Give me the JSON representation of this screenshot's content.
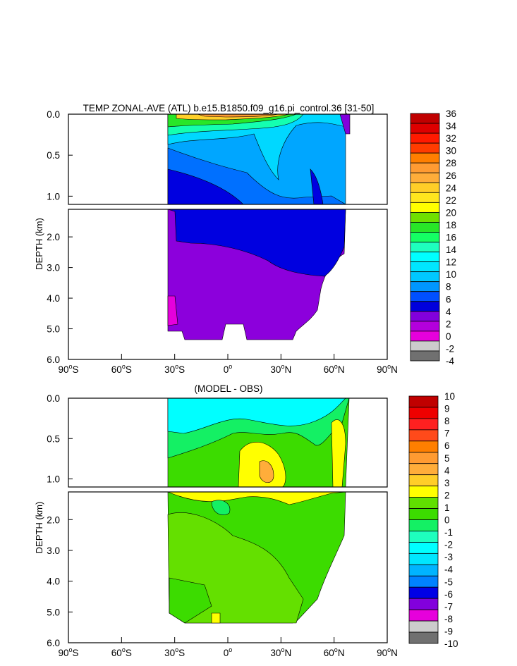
{
  "chart_data": [
    {
      "type": "heatmap",
      "title": "TEMP ZONAL-AVE (ATL) b.e15.B1850.f09_g16.pi_control.36 [31-50]",
      "ylabel": "DEPTH (km)",
      "xlim": [
        -90,
        90
      ],
      "ylim": [
        0,
        6
      ],
      "x_ticks": [
        {
          "value": -90,
          "deg": "90",
          "hemi": "S"
        },
        {
          "value": -60,
          "deg": "60",
          "hemi": "S"
        },
        {
          "value": -30,
          "deg": "30",
          "hemi": "S"
        },
        {
          "value": 0,
          "deg": "0",
          "hemi": ""
        },
        {
          "value": 30,
          "deg": "30",
          "hemi": "N"
        },
        {
          "value": 60,
          "deg": "60",
          "hemi": "N"
        },
        {
          "value": 90,
          "deg": "90",
          "hemi": "N"
        }
      ],
      "y_ticks_upper": [
        "0.0",
        "0.5",
        "1.0"
      ],
      "y_ticks_lower": [
        "2.0",
        "3.0",
        "4.0",
        "5.0",
        "6.0"
      ],
      "colorbar": {
        "labels": [
          "36",
          "34",
          "32",
          "30",
          "28",
          "26",
          "24",
          "22",
          "20",
          "18",
          "16",
          "14",
          "12",
          "10",
          "8",
          "6",
          "4",
          "2",
          "0",
          "-2",
          "-4"
        ],
        "colors": [
          "#c00000",
          "#dd0000",
          "#ff1a00",
          "#ff3c00",
          "#ff7f00",
          "#ff9b32",
          "#ffad3a",
          "#ffce28",
          "#ffe61e",
          "#ffff00",
          "#70e000",
          "#28e628",
          "#14ff64",
          "#1effbe",
          "#00ffff",
          "#00e6ff",
          "#00c8ff",
          "#0096ff",
          "#0050ff",
          "#0000dc",
          "#8200dc",
          "#b400dc",
          "#e600dc",
          "#cccccc",
          "#707070"
        ]
      }
    },
    {
      "type": "heatmap",
      "title": "(MODEL - OBS)",
      "ylabel": "DEPTH (km)",
      "xlim": [
        -90,
        90
      ],
      "ylim": [
        0,
        6
      ],
      "x_ticks": [
        {
          "value": -90,
          "deg": "90",
          "hemi": "S"
        },
        {
          "value": -60,
          "deg": "60",
          "hemi": "S"
        },
        {
          "value": -30,
          "deg": "30",
          "hemi": "S"
        },
        {
          "value": 0,
          "deg": "0",
          "hemi": ""
        },
        {
          "value": 30,
          "deg": "30",
          "hemi": "N"
        },
        {
          "value": 60,
          "deg": "60",
          "hemi": "N"
        },
        {
          "value": 90,
          "deg": "90",
          "hemi": "N"
        }
      ],
      "y_ticks_upper": [
        "0.0",
        "0.5",
        "1.0"
      ],
      "y_ticks_lower": [
        "2.0",
        "3.0",
        "4.0",
        "5.0",
        "6.0"
      ],
      "colorbar": {
        "labels": [
          "10",
          "9",
          "8",
          "7",
          "6",
          "5",
          "4",
          "3",
          "2",
          "1",
          "0",
          "-1",
          "-2",
          "-3",
          "-4",
          "-5",
          "-6",
          "-7",
          "-8",
          "-9",
          "-10"
        ],
        "colors": [
          "#c00000",
          "#ee0000",
          "#ff2020",
          "#ff4a1a",
          "#ff7f00",
          "#ff9b32",
          "#ffad3a",
          "#ffce28",
          "#ffff00",
          "#60e000",
          "#3cdc00",
          "#14f064",
          "#1effbe",
          "#00ffff",
          "#00e6ff",
          "#00b4ff",
          "#0082ff",
          "#0000e6",
          "#8200dc",
          "#e600dc",
          "#cccccc",
          "#707070"
        ]
      }
    }
  ]
}
